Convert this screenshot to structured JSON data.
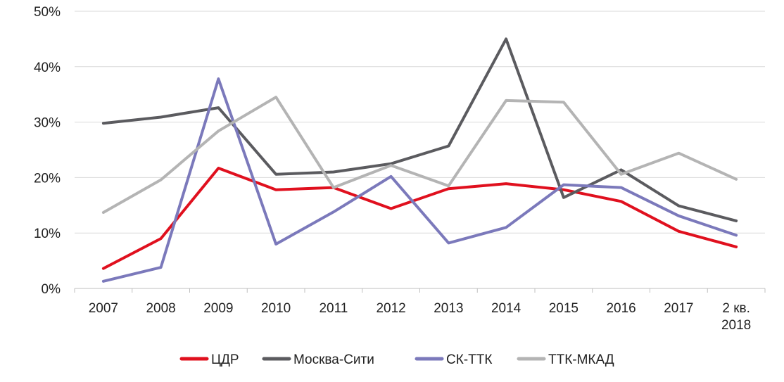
{
  "chart_data": {
    "type": "line",
    "categories": [
      "2007",
      "2008",
      "2009",
      "2010",
      "2011",
      "2012",
      "2013",
      "2014",
      "2015",
      "2016",
      "2017",
      "2 кв. 2018"
    ],
    "category_labels": [
      [
        "2007"
      ],
      [
        "2008"
      ],
      [
        "2009"
      ],
      [
        "2010"
      ],
      [
        "2011"
      ],
      [
        "2012"
      ],
      [
        "2013"
      ],
      [
        "2014"
      ],
      [
        "2015"
      ],
      [
        "2016"
      ],
      [
        "2017"
      ],
      [
        "2 кв.",
        "2018"
      ]
    ],
    "y_ticks": [
      "0%",
      "10%",
      "20%",
      "30%",
      "40%",
      "50%"
    ],
    "ylim": [
      0,
      50
    ],
    "y_unit": "%",
    "grid": true,
    "legend_position": "bottom",
    "series": [
      {
        "name": "ЦДР",
        "color": "#e0101e",
        "values": [
          3.6,
          9.0,
          21.7,
          17.8,
          18.2,
          14.4,
          18.0,
          18.9,
          17.8,
          15.7,
          10.3,
          7.5
        ]
      },
      {
        "name": "Москва-Сити",
        "color": "#5b5b5f",
        "values": [
          29.8,
          30.9,
          32.6,
          20.6,
          21.0,
          22.5,
          25.7,
          45.0,
          16.4,
          21.4,
          14.9,
          12.2
        ]
      },
      {
        "name": "СК-ТТК",
        "color": "#7b79bb",
        "values": [
          1.3,
          3.8,
          37.8,
          8.0,
          13.8,
          20.2,
          8.2,
          11.0,
          18.7,
          18.2,
          13.1,
          9.6
        ]
      },
      {
        "name": "ТТК-МКАД",
        "color": "#b4b4b4",
        "values": [
          13.7,
          19.6,
          28.4,
          34.5,
          18.2,
          22.2,
          18.5,
          33.9,
          33.6,
          20.6,
          24.4,
          19.7
        ]
      }
    ]
  }
}
